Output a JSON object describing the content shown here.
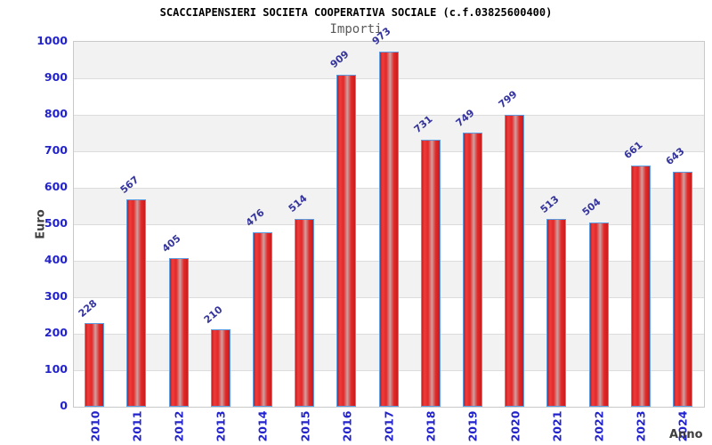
{
  "header": {
    "title": "SCACCIAPENSIERI SOCIETA COOPERATIVA SOCIALE (c.f.03825600400)",
    "subtitle": "Importi"
  },
  "chart_data": {
    "type": "bar",
    "title": "SCACCIAPENSIERI SOCIETA COOPERATIVA SOCIALE (c.f.03825600400)",
    "subtitle": "Importi",
    "categories": [
      "2010",
      "2011",
      "2012",
      "2013",
      "2014",
      "2015",
      "2016",
      "2017",
      "2018",
      "2019",
      "2020",
      "2021",
      "2022",
      "2023",
      "2024"
    ],
    "values": [
      228,
      567,
      405,
      210,
      476,
      514,
      909,
      973,
      731,
      749,
      799,
      513,
      504,
      661,
      643
    ],
    "xlabel": "Anno",
    "ylabel": "Euro",
    "ylim": [
      0,
      1000
    ],
    "yticks": [
      0,
      100,
      200,
      300,
      400,
      500,
      600,
      700,
      800,
      900,
      1000
    ],
    "grid": "horizontal-gridlines-with-alternating-bands",
    "legend_position": "none",
    "value_labels_shown": true,
    "value_label_rotation_deg": -40,
    "xtick_rotation_deg": -90
  },
  "colors": {
    "bar_fill_main": "#e32727",
    "bar_fill_highlight": "#cfa0a0",
    "bar_border": "#5b9de0",
    "tick_label": "#2323cc",
    "value_label": "#34349c",
    "axis_title": "#3f3f3f",
    "title": "#000000",
    "subtitle": "#5a5a5a",
    "band_gray": "#f2f2f2",
    "grid_line": "#dcdcdc",
    "plot_border": "#c9c9c9",
    "background": "#ffffff"
  }
}
